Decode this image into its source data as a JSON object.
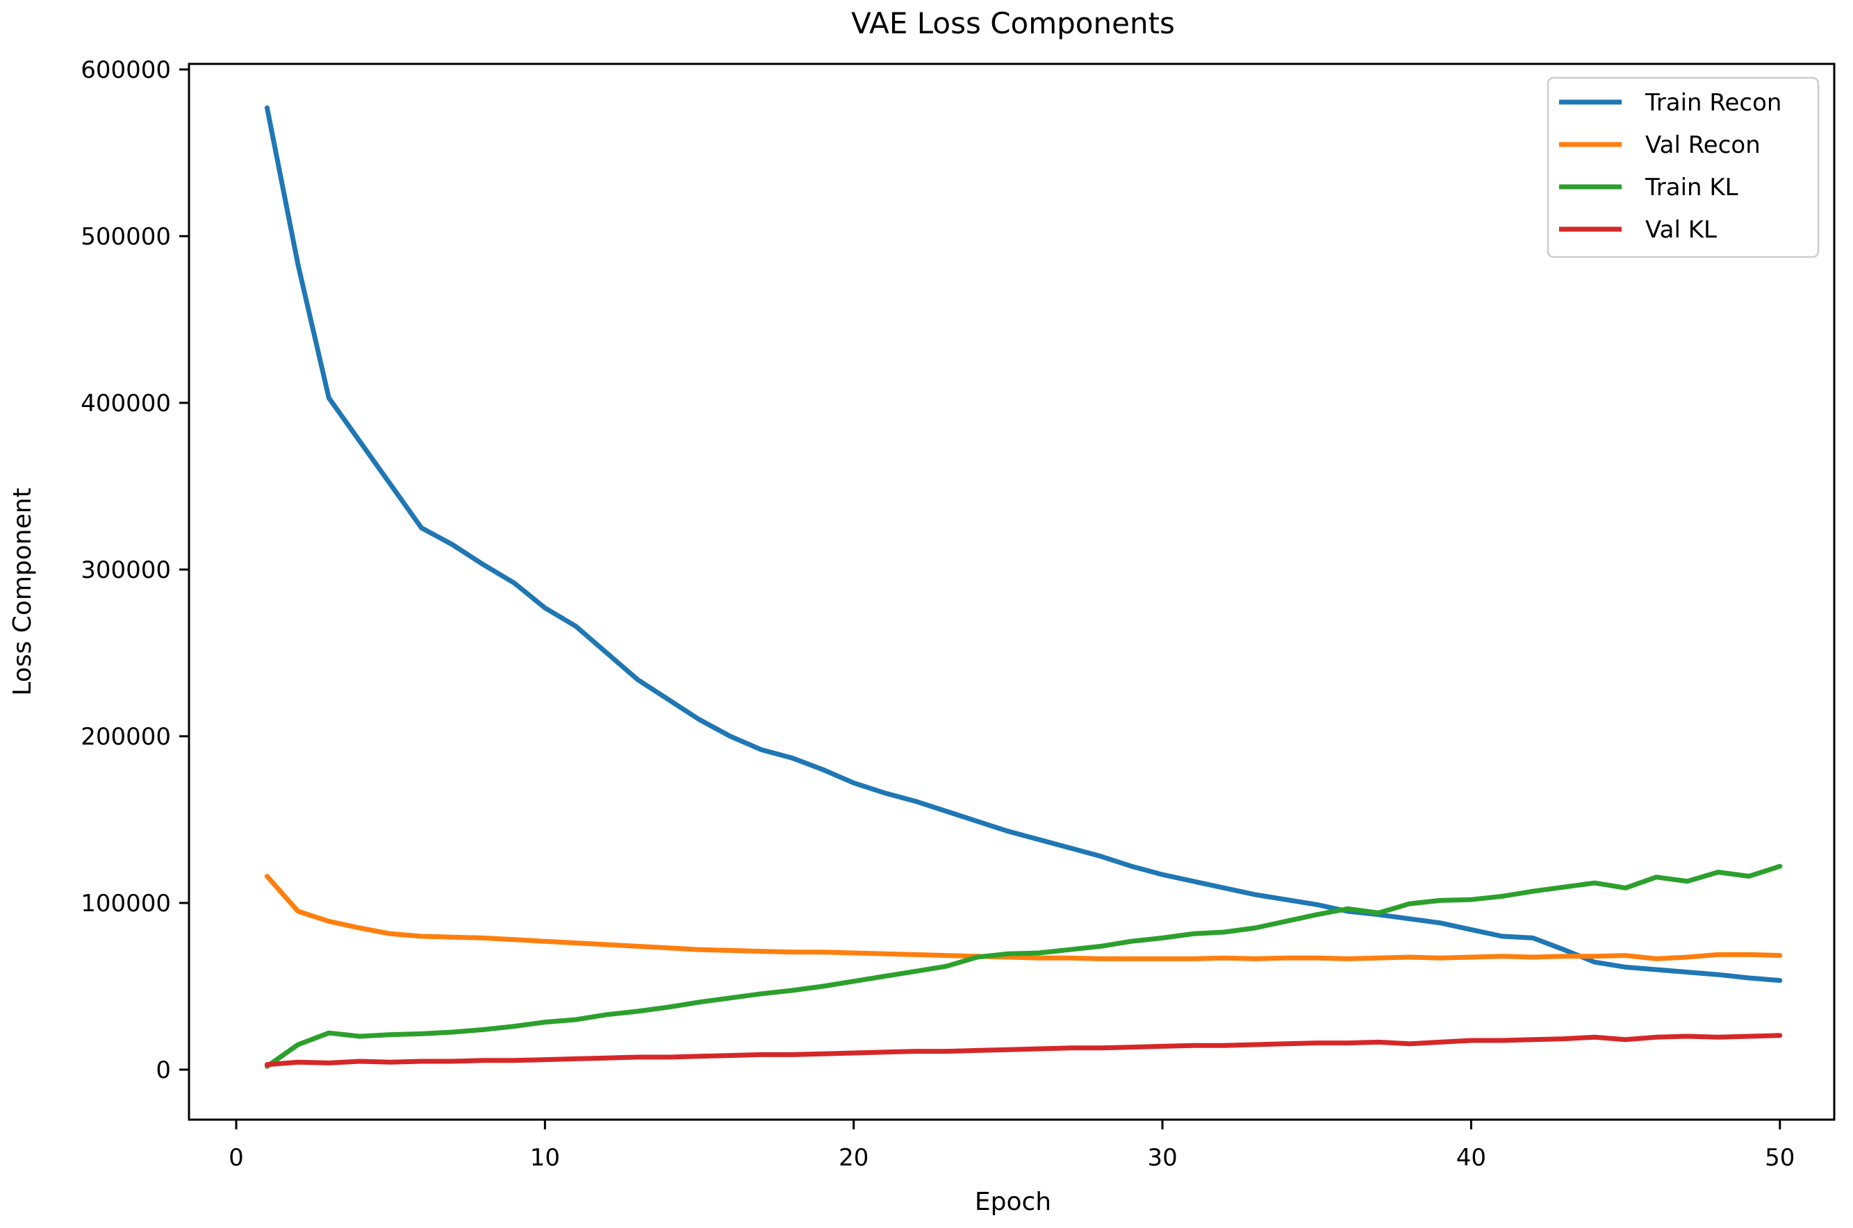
{
  "chart_data": {
    "type": "line",
    "title": "VAE Loss Components",
    "xlabel": "Epoch",
    "ylabel": "Loss Component",
    "grid": false,
    "legend_position": "upper right",
    "xlim": [
      -1.53,
      51.76
    ],
    "ylim": [
      -30000,
      603333
    ],
    "x_ticks": [
      0,
      10,
      20,
      30,
      40,
      50
    ],
    "y_ticks": [
      0,
      100000,
      200000,
      300000,
      400000,
      500000,
      600000
    ],
    "x": [
      1,
      2,
      3,
      4,
      5,
      6,
      7,
      8,
      9,
      10,
      11,
      12,
      13,
      14,
      15,
      16,
      17,
      18,
      19,
      20,
      21,
      22,
      23,
      24,
      25,
      26,
      27,
      28,
      29,
      30,
      31,
      32,
      33,
      34,
      35,
      36,
      37,
      38,
      39,
      40,
      41,
      42,
      43,
      44,
      45,
      46,
      47,
      48,
      49,
      50
    ],
    "series": [
      {
        "name": "Train Recon",
        "color": "#1f77b4",
        "values": [
          577000,
          483000,
          403000,
          377000,
          351000,
          325000,
          315000,
          303000,
          292000,
          277000,
          266000,
          250000,
          234000,
          222000,
          210000,
          200000,
          192000,
          187000,
          180000,
          172000,
          166000,
          161000,
          155000,
          149000,
          143000,
          138000,
          133000,
          128000,
          122000,
          117000,
          113000,
          109000,
          105000,
          102000,
          99000,
          95000,
          93000,
          90500,
          88000,
          84000,
          80000,
          79000,
          72000,
          64500,
          61500,
          60000,
          58500,
          57000,
          55000,
          53500
        ]
      },
      {
        "name": "Val Recon",
        "color": "#ff7f0e",
        "values": [
          116000,
          95000,
          89000,
          85000,
          81500,
          80000,
          79500,
          79000,
          78000,
          77000,
          76000,
          75000,
          74000,
          73000,
          72000,
          71500,
          71000,
          70500,
          70500,
          70000,
          69500,
          69000,
          68500,
          68000,
          67500,
          67000,
          67000,
          66500,
          66500,
          66500,
          66500,
          67000,
          66500,
          67000,
          67000,
          66500,
          67000,
          67500,
          67000,
          67500,
          68000,
          67500,
          68000,
          68000,
          68500,
          66500,
          67500,
          69000,
          69000,
          68500
        ]
      },
      {
        "name": "Train KL",
        "color": "#2ca02c",
        "values": [
          2000,
          15000,
          22000,
          20000,
          21000,
          21500,
          22500,
          24000,
          26000,
          28500,
          30000,
          33000,
          35000,
          37500,
          40500,
          43000,
          45500,
          47500,
          50000,
          53000,
          56000,
          59000,
          62000,
          67500,
          69500,
          70000,
          72000,
          74000,
          77000,
          79000,
          81500,
          82500,
          85000,
          89000,
          93000,
          96500,
          94000,
          99500,
          101500,
          102000,
          104000,
          107000,
          109500,
          112000,
          109000,
          115500,
          113000,
          118500,
          116000,
          122000
        ]
      },
      {
        "name": "Val KL",
        "color": "#d62728",
        "values": [
          3000,
          4500,
          4000,
          5000,
          4500,
          5000,
          5000,
          5500,
          5500,
          6000,
          6500,
          7000,
          7500,
          7500,
          8000,
          8500,
          9000,
          9000,
          9500,
          10000,
          10500,
          11000,
          11000,
          11500,
          12000,
          12500,
          13000,
          13000,
          13500,
          14000,
          14500,
          14500,
          15000,
          15500,
          16000,
          16000,
          16500,
          15500,
          16500,
          17500,
          17500,
          18000,
          18500,
          19500,
          18000,
          19500,
          20000,
          19500,
          20000,
          20500
        ]
      }
    ]
  }
}
